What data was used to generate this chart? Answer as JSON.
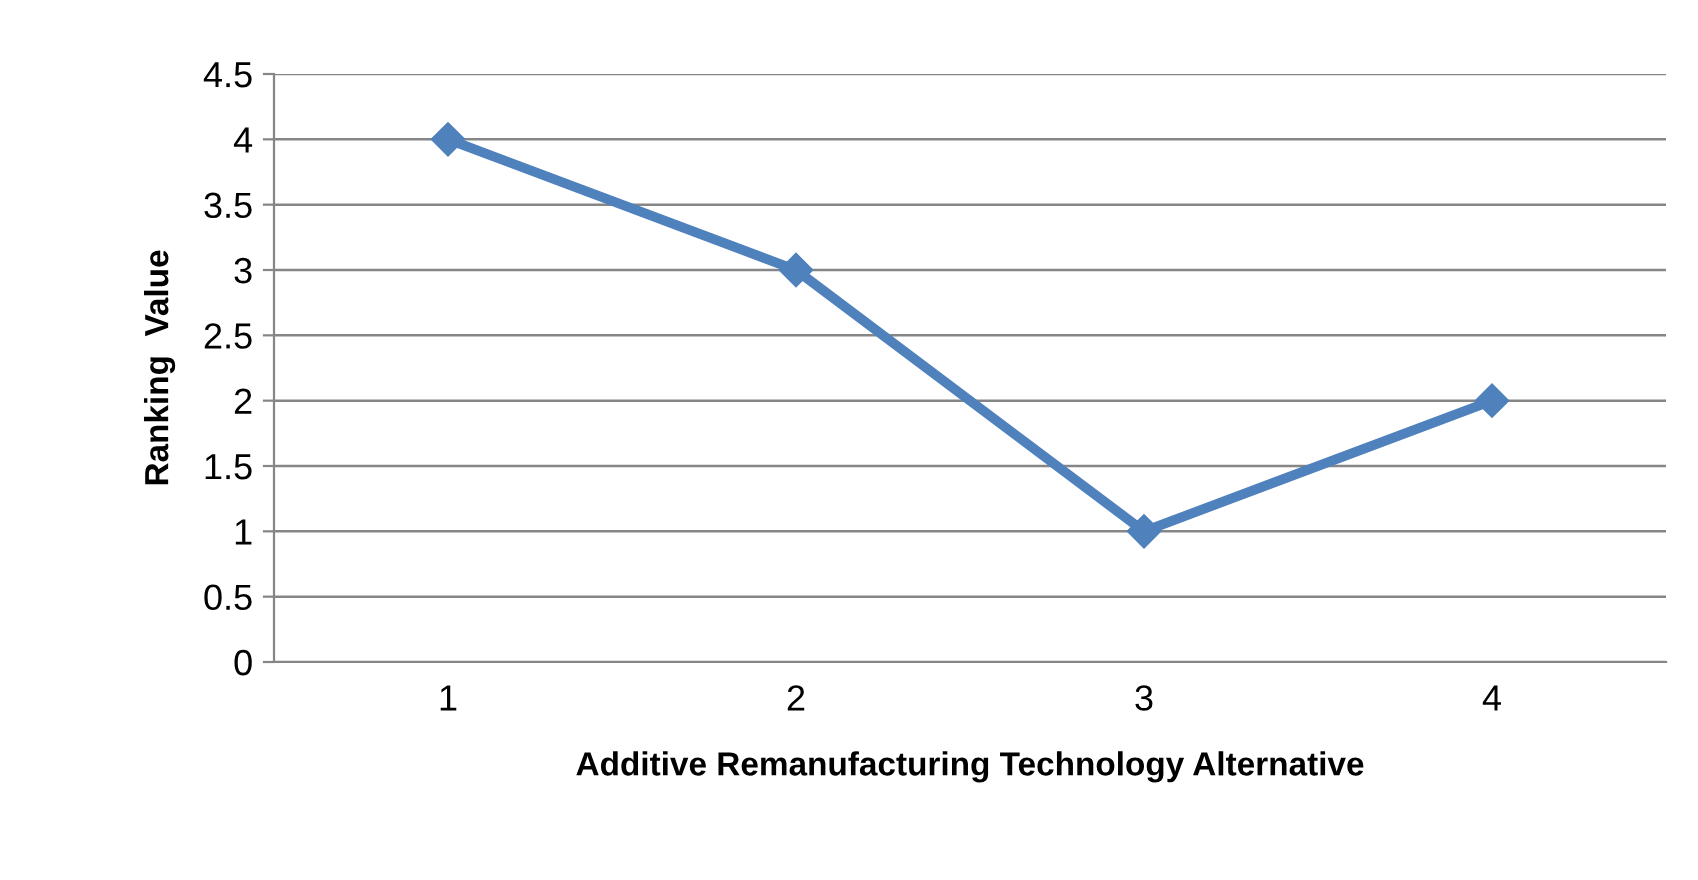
{
  "chart_data": {
    "type": "line",
    "xlabel": "Additive Remanufacturing Technology Alternative",
    "ylabel": "Ranking  Value",
    "categories": [
      "1",
      "2",
      "3",
      "4"
    ],
    "series": [
      {
        "color": "#4f81bd",
        "values": [
          4,
          3,
          1,
          2
        ]
      }
    ],
    "ylim": [
      0,
      4.5
    ],
    "yticks": [
      0,
      0.5,
      1,
      1.5,
      2,
      2.5,
      3,
      3.5,
      4,
      4.5
    ],
    "grid": "y",
    "marker": "diamond",
    "line_style": "solid"
  }
}
